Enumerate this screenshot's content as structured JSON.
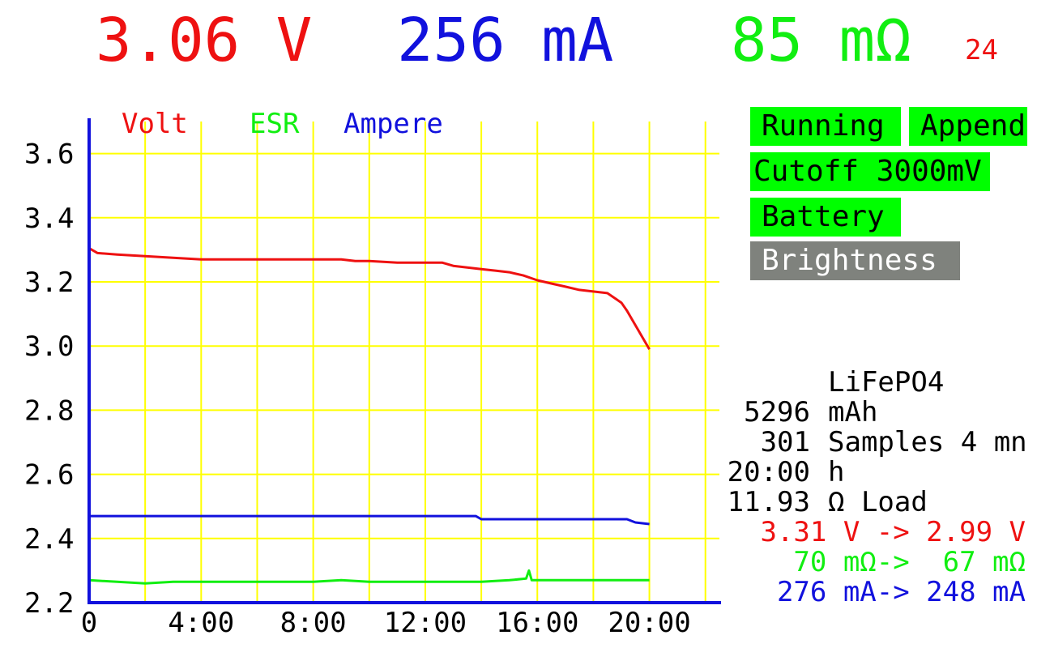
{
  "header": {
    "voltage": "3.06 V",
    "current": "256 mA",
    "esr": "85 mΩ",
    "counter": "24",
    "colors": {
      "voltage": "#ee1111",
      "current": "#1111dd",
      "esr": "#11ee11",
      "counter": "#ee1111"
    }
  },
  "buttons": [
    {
      "label": "Running",
      "color": "#00ff00"
    },
    {
      "label": "Append",
      "color": "#00ff00"
    },
    {
      "label": "Cutoff 3000mV",
      "color": "#00ff00"
    },
    {
      "label": "Battery",
      "color": "#00ff00"
    },
    {
      "label": "Brightness",
      "color": "#7f827d",
      "text_color": "#ffffff"
    }
  ],
  "info": {
    "chemistry": "LiFePO4",
    "capacity_value": "5296",
    "capacity_unit": "mAh",
    "samples_value": "301",
    "samples_text": "Samples 4 mn",
    "duration_value": "20:00",
    "duration_unit": "h",
    "load_value": "11.93",
    "load_text": "Ω Load",
    "voltage_range": "3.31 V -> 2.99 V",
    "esr_range": "70 mΩ->  67 mΩ",
    "current_range": "276 mA-> 248 mA"
  },
  "chart_data": {
    "type": "line",
    "y_ticks": [
      "3.6",
      "3.4",
      "3.2",
      "3.0",
      "2.8",
      "2.6",
      "2.4",
      "2.2"
    ],
    "x_ticks": [
      "0",
      "4:00",
      "8:00",
      "12:00",
      "16:00",
      "20:00"
    ],
    "ylim": [
      2.2,
      3.7
    ],
    "xlim": [
      0,
      22.5
    ],
    "grid": true,
    "grid_color": "#ffff00",
    "axis_color": "#1111dd",
    "legend_position": "top",
    "series": [
      {
        "name": "Volt",
        "color": "#ee1111",
        "x": [
          0,
          0.3,
          1,
          2,
          3,
          4,
          6,
          8,
          9,
          9.5,
          10,
          11,
          12,
          12.6,
          13,
          13.5,
          14,
          14.5,
          15,
          15.5,
          16,
          16.5,
          17,
          17.5,
          18,
          18.5,
          19,
          19.2,
          19.4,
          19.6,
          19.8,
          20
        ],
        "y": [
          3.305,
          3.29,
          3.285,
          3.28,
          3.275,
          3.27,
          3.27,
          3.27,
          3.27,
          3.265,
          3.265,
          3.26,
          3.26,
          3.26,
          3.25,
          3.245,
          3.24,
          3.235,
          3.23,
          3.22,
          3.205,
          3.195,
          3.185,
          3.175,
          3.17,
          3.165,
          3.135,
          3.11,
          3.08,
          3.05,
          3.02,
          2.99
        ]
      },
      {
        "name": "ESR",
        "color": "#11ee11",
        "x": [
          0,
          1,
          2,
          3,
          4,
          6,
          8,
          9,
          10,
          12,
          14,
          15,
          15.6,
          15.7,
          15.8,
          16,
          17,
          18,
          19,
          20
        ],
        "y": [
          2.27,
          2.265,
          2.26,
          2.265,
          2.265,
          2.265,
          2.265,
          2.27,
          2.265,
          2.265,
          2.265,
          2.27,
          2.275,
          2.3,
          2.27,
          2.27,
          2.27,
          2.27,
          2.27,
          2.27
        ]
      },
      {
        "name": "Ampere",
        "color": "#1111dd",
        "x": [
          0,
          2,
          4,
          6,
          8,
          10,
          12,
          13.8,
          14,
          16,
          18,
          19.2,
          19.5,
          20
        ],
        "y": [
          2.47,
          2.47,
          2.47,
          2.47,
          2.47,
          2.47,
          2.47,
          2.47,
          2.46,
          2.46,
          2.46,
          2.46,
          2.45,
          2.445
        ]
      }
    ]
  }
}
